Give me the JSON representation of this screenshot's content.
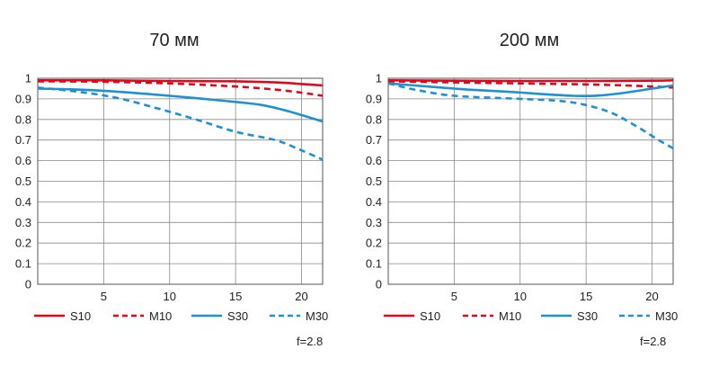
{
  "chart_data": [
    {
      "type": "line",
      "title": "70 мм",
      "note": "f=2.8",
      "xlim": [
        0,
        21.6
      ],
      "ylim": [
        0,
        1
      ],
      "xticks": [
        5,
        10,
        15,
        20
      ],
      "yticks": [
        0,
        0.1,
        0.2,
        0.3,
        0.4,
        0.5,
        0.6,
        0.7,
        0.8,
        0.9,
        1
      ],
      "ytick_labels": [
        "0",
        "0.1",
        "0.2",
        "0.3",
        "0.4",
        "0.5",
        "0.6",
        "0.7",
        "0.8",
        "0.9",
        "1"
      ],
      "grid": true,
      "legend_position": "bottom",
      "series": [
        {
          "name": "S10",
          "color": "#e3061b",
          "dashed": false,
          "x": [
            0,
            5,
            10,
            15,
            18,
            20,
            21.6
          ],
          "y": [
            0.99,
            0.99,
            0.987,
            0.985,
            0.98,
            0.972,
            0.965
          ]
        },
        {
          "name": "M10",
          "color": "#e3061b",
          "dashed": true,
          "x": [
            0,
            5,
            10,
            15,
            18,
            20,
            21.6
          ],
          "y": [
            0.985,
            0.983,
            0.975,
            0.96,
            0.945,
            0.93,
            0.915
          ]
        },
        {
          "name": "S30",
          "color": "#1e90d6",
          "dashed": false,
          "x": [
            0,
            3,
            6,
            10,
            15,
            17,
            19,
            21.6
          ],
          "y": [
            0.95,
            0.945,
            0.935,
            0.915,
            0.885,
            0.87,
            0.84,
            0.79
          ]
        },
        {
          "name": "M30",
          "color": "#1e90d6",
          "dashed": true,
          "x": [
            0,
            3,
            6,
            9,
            12,
            15,
            18,
            20,
            21.6
          ],
          "y": [
            0.955,
            0.935,
            0.905,
            0.855,
            0.8,
            0.74,
            0.7,
            0.65,
            0.605
          ]
        }
      ]
    },
    {
      "type": "line",
      "title": "200 мм",
      "note": "f=2.8",
      "xlim": [
        0,
        21.6
      ],
      "ylim": [
        0,
        1
      ],
      "xticks": [
        5,
        10,
        15,
        20
      ],
      "yticks": [
        0,
        0.1,
        0.2,
        0.3,
        0.4,
        0.5,
        0.6,
        0.7,
        0.8,
        0.9,
        1
      ],
      "ytick_labels": [
        "0",
        "0.1",
        "0.2",
        "0.3",
        "0.4",
        "0.5",
        "0.6",
        "0.7",
        "0.8",
        "0.9",
        "1"
      ],
      "grid": true,
      "legend_position": "bottom",
      "series": [
        {
          "name": "S10",
          "color": "#e3061b",
          "dashed": false,
          "x": [
            0,
            5,
            10,
            15,
            20,
            21.6
          ],
          "y": [
            0.99,
            0.988,
            0.987,
            0.987,
            0.988,
            0.99
          ]
        },
        {
          "name": "M10",
          "color": "#e3061b",
          "dashed": true,
          "x": [
            0,
            5,
            10,
            15,
            18,
            20,
            21.6
          ],
          "y": [
            0.985,
            0.98,
            0.975,
            0.97,
            0.965,
            0.96,
            0.955
          ]
        },
        {
          "name": "S30",
          "color": "#1e90d6",
          "dashed": false,
          "x": [
            0,
            3,
            6,
            9,
            12,
            14,
            15,
            16,
            18,
            20,
            21.6
          ],
          "y": [
            0.975,
            0.96,
            0.945,
            0.935,
            0.922,
            0.915,
            0.914,
            0.916,
            0.93,
            0.95,
            0.965
          ]
        },
        {
          "name": "M30",
          "color": "#1e90d6",
          "dashed": true,
          "x": [
            0,
            2,
            5,
            10,
            13,
            15,
            17,
            19,
            20.5,
            21.6
          ],
          "y": [
            0.975,
            0.945,
            0.915,
            0.9,
            0.89,
            0.87,
            0.83,
            0.76,
            0.7,
            0.66
          ]
        }
      ]
    }
  ]
}
